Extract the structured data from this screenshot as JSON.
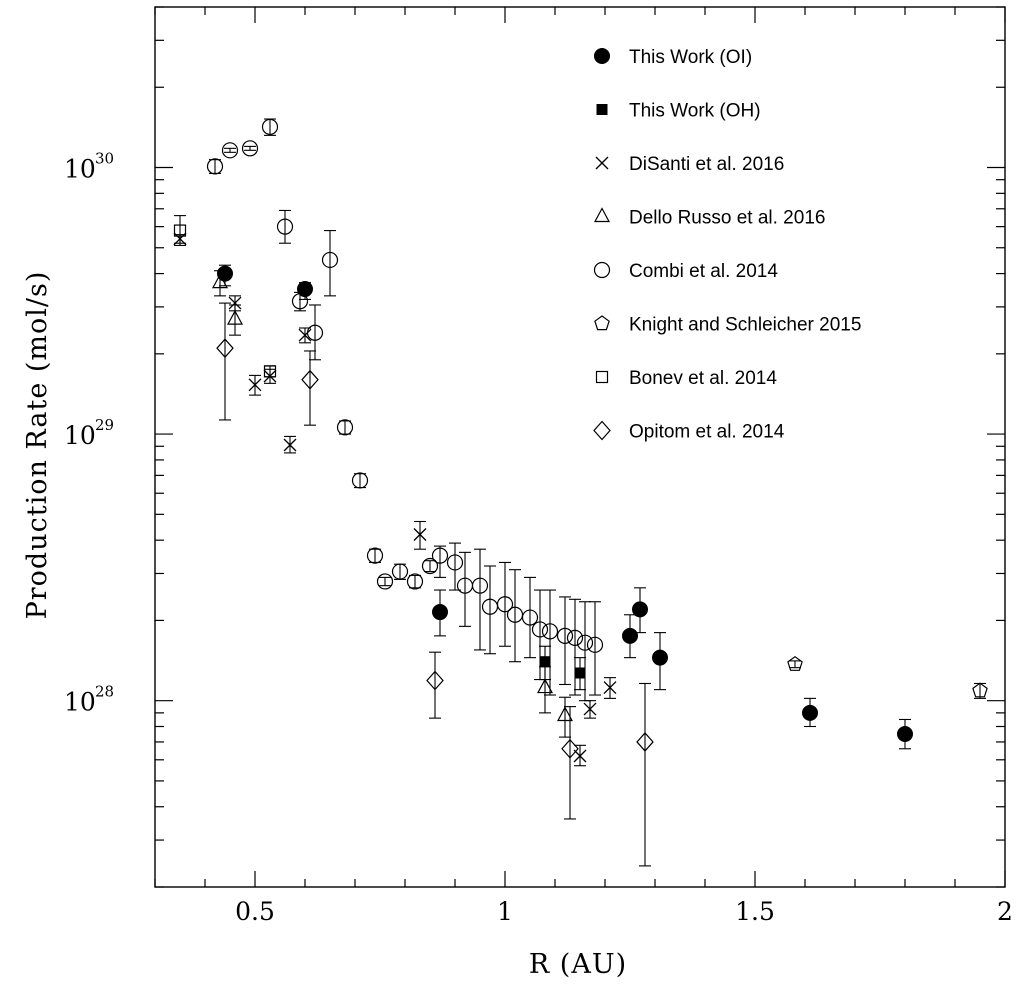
{
  "chart_data": {
    "type": "scatter",
    "title": "",
    "xlabel": "R (AU)",
    "ylabel": "Production Rate (mol/s)",
    "xlim": [
      0.3,
      2.0
    ],
    "ylim": [
      2e+27,
      4e+30
    ],
    "yscale": "log",
    "x_ticks": [
      {
        "value": 0.5,
        "label": "0.5"
      },
      {
        "value": 1.0,
        "label": "1"
      },
      {
        "value": 1.5,
        "label": "1.5"
      },
      {
        "value": 2.0,
        "label": "2"
      }
    ],
    "y_ticks": [
      {
        "value": 1e+28,
        "mantissa": "10",
        "exponent": "28"
      },
      {
        "value": 1e+29,
        "mantissa": "10",
        "exponent": "29"
      },
      {
        "value": 1e+30,
        "mantissa": "10",
        "exponent": "30"
      }
    ],
    "legend_position": "top-right",
    "series": [
      {
        "name": "This Work (OI)",
        "marker": "filled-circle",
        "points": [
          {
            "x": 0.44,
            "y": 4e+29,
            "lo": 3.6e+29,
            "hi": 4.3e+29
          },
          {
            "x": 0.6,
            "y": 3.5e+29,
            "lo": 3.2e+29,
            "hi": 3.7e+29
          },
          {
            "x": 0.87,
            "y": 2.15e+28,
            "lo": 1.75e+28,
            "hi": 2.6e+28
          },
          {
            "x": 1.25,
            "y": 1.75e+28,
            "lo": 1.45e+28,
            "hi": 2.1e+28
          },
          {
            "x": 1.27,
            "y": 2.2e+28,
            "lo": 1.8e+28,
            "hi": 2.65e+28
          },
          {
            "x": 1.31,
            "y": 1.45e+28,
            "lo": 1.1e+28,
            "hi": 1.8e+28
          },
          {
            "x": 1.61,
            "y": 9e+27,
            "lo": 8e+27,
            "hi": 1.02e+28
          },
          {
            "x": 1.8,
            "y": 7.5e+27,
            "lo": 6.6e+27,
            "hi": 8.5e+27
          }
        ]
      },
      {
        "name": "This Work (OH)",
        "marker": "filled-square",
        "points": [
          {
            "x": 1.08,
            "y": 1.4e+28,
            "lo": 1.2e+28,
            "hi": 1.6e+28
          },
          {
            "x": 1.15,
            "y": 1.27e+28,
            "lo": 1.1e+28,
            "hi": 1.45e+28
          }
        ]
      },
      {
        "name": "DiSanti et al. 2016",
        "marker": "cross",
        "points": [
          {
            "x": 0.35,
            "y": 5.4e+29,
            "lo": 5.2e+29,
            "hi": 5.6e+29
          },
          {
            "x": 0.46,
            "y": 3.1e+29,
            "lo": 2.9e+29,
            "hi": 3.3e+29
          },
          {
            "x": 0.5,
            "y": 1.53e+29,
            "lo": 1.4e+29,
            "hi": 1.66e+29
          },
          {
            "x": 0.53,
            "y": 1.65e+29,
            "lo": 1.55e+29,
            "hi": 1.75e+29
          },
          {
            "x": 0.57,
            "y": 9.1e+28,
            "lo": 8.5e+28,
            "hi": 9.8e+28
          },
          {
            "x": 0.6,
            "y": 2.35e+29,
            "lo": 2.2e+29,
            "hi": 2.5e+29
          },
          {
            "x": 0.83,
            "y": 4.2e+28,
            "lo": 3.7e+28,
            "hi": 4.7e+28
          },
          {
            "x": 1.15,
            "y": 6.2e+27,
            "lo": 5.7e+27,
            "hi": 6.8e+27
          },
          {
            "x": 1.17,
            "y": 9.3e+27,
            "lo": 8.6e+27,
            "hi": 1e+28
          },
          {
            "x": 1.21,
            "y": 1.12e+28,
            "lo": 1.02e+28,
            "hi": 1.22e+28
          }
        ]
      },
      {
        "name": "Dello Russo et al. 2016",
        "marker": "open-triangle",
        "points": [
          {
            "x": 0.43,
            "y": 3.7e+29,
            "lo": 3.3e+29,
            "hi": 4.1e+29
          },
          {
            "x": 0.46,
            "y": 2.7e+29,
            "lo": 2.35e+29,
            "hi": 3.05e+29
          },
          {
            "x": 1.08,
            "y": 1.12e+28,
            "lo": 9e+27,
            "hi": 1.34e+28
          },
          {
            "x": 1.12,
            "y": 8.8e+27,
            "lo": 7.3e+27,
            "hi": 1.03e+28
          }
        ]
      },
      {
        "name": "Combi et al. 2014",
        "marker": "open-circle",
        "points": [
          {
            "x": 0.42,
            "y": 1.01e+30,
            "lo": 9.5e+29,
            "hi": 1.07e+30
          },
          {
            "x": 0.45,
            "y": 1.16e+30,
            "lo": 1.14e+30,
            "hi": 1.18e+30
          },
          {
            "x": 0.49,
            "y": 1.18e+30,
            "lo": 1.16e+30,
            "hi": 1.2e+30
          },
          {
            "x": 0.53,
            "y": 1.42e+30,
            "lo": 1.32e+30,
            "hi": 1.52e+30
          },
          {
            "x": 0.56,
            "y": 6e+29,
            "lo": 5.2e+29,
            "hi": 6.9e+29
          },
          {
            "x": 0.59,
            "y": 3.15e+29,
            "lo": 2.9e+29,
            "hi": 3.4e+29
          },
          {
            "x": 0.62,
            "y": 2.4e+29,
            "lo": 1.9e+29,
            "hi": 3.05e+29
          },
          {
            "x": 0.65,
            "y": 4.5e+29,
            "lo": 3.3e+29,
            "hi": 5.8e+29
          },
          {
            "x": 0.68,
            "y": 1.06e+29,
            "lo": 1e+29,
            "hi": 1.12e+29
          },
          {
            "x": 0.71,
            "y": 6.7e+28,
            "lo": 6.3e+28,
            "hi": 7.1e+28
          },
          {
            "x": 0.74,
            "y": 3.5e+28,
            "lo": 3.3e+28,
            "hi": 3.7e+28
          },
          {
            "x": 0.76,
            "y": 2.8e+28,
            "lo": 2.7e+28,
            "hi": 2.9e+28
          },
          {
            "x": 0.79,
            "y": 3.05e+28,
            "lo": 2.85e+28,
            "hi": 3.25e+28
          },
          {
            "x": 0.82,
            "y": 2.8e+28,
            "lo": 2.65e+28,
            "hi": 2.95e+28
          },
          {
            "x": 0.85,
            "y": 3.2e+28,
            "lo": 3.05e+28,
            "hi": 3.35e+28
          },
          {
            "x": 0.87,
            "y": 3.5e+28,
            "lo": 2.9e+28,
            "hi": 3.8e+28
          },
          {
            "x": 0.9,
            "y": 3.3e+28,
            "lo": 2.6e+28,
            "hi": 3.9e+28
          },
          {
            "x": 0.92,
            "y": 2.7e+28,
            "lo": 1.9e+28,
            "hi": 3.6e+28
          },
          {
            "x": 0.95,
            "y": 2.7e+28,
            "lo": 1.55e+28,
            "hi": 3.7e+28
          },
          {
            "x": 0.97,
            "y": 2.25e+28,
            "lo": 1.5e+28,
            "hi": 3.2e+28
          },
          {
            "x": 1.0,
            "y": 2.3e+28,
            "lo": 1.6e+28,
            "hi": 3.3e+28
          },
          {
            "x": 1.02,
            "y": 2.1e+28,
            "lo": 1.4e+28,
            "hi": 3.1e+28
          },
          {
            "x": 1.05,
            "y": 2.05e+28,
            "lo": 1.45e+28,
            "hi": 2.9e+28
          },
          {
            "x": 1.07,
            "y": 1.85e+28,
            "lo": 1.2e+28,
            "hi": 2.6e+28
          },
          {
            "x": 1.09,
            "y": 1.82e+28,
            "lo": 1.05e+28,
            "hi": 2.6e+28
          },
          {
            "x": 1.12,
            "y": 1.75e+28,
            "lo": 1.15e+28,
            "hi": 2.45e+28
          },
          {
            "x": 1.14,
            "y": 1.72e+28,
            "lo": 1.05e+28,
            "hi": 2.4e+28
          },
          {
            "x": 1.16,
            "y": 1.65e+28,
            "lo": 1e+28,
            "hi": 2.35e+28
          },
          {
            "x": 1.18,
            "y": 1.62e+28,
            "lo": 1.05e+28,
            "hi": 2.35e+28
          }
        ]
      },
      {
        "name": "Knight and Schleicher 2015",
        "marker": "open-pentagon",
        "points": [
          {
            "x": 1.58,
            "y": 1.37e+28,
            "lo": 1.33e+28,
            "hi": 1.41e+28
          },
          {
            "x": 1.95,
            "y": 1.09e+28,
            "lo": 1.02e+28,
            "hi": 1.16e+28
          }
        ]
      },
      {
        "name": "Bonev et al. 2014",
        "marker": "open-square",
        "points": [
          {
            "x": 0.35,
            "y": 5.8e+29,
            "lo": 5.1e+29,
            "hi": 6.6e+29
          },
          {
            "x": 0.53,
            "y": 1.72e+29,
            "lo": 1.64e+29,
            "hi": 1.8e+29
          }
        ]
      },
      {
        "name": "Opitom et al. 2014",
        "marker": "open-diamond",
        "points": [
          {
            "x": 0.44,
            "y": 2.1e+29,
            "lo": 1.13e+29,
            "hi": 3.1e+29
          },
          {
            "x": 0.61,
            "y": 1.6e+29,
            "lo": 1.08e+29,
            "hi": 2.05e+29
          },
          {
            "x": 0.86,
            "y": 1.19e+28,
            "lo": 8.6e+27,
            "hi": 1.52e+28
          },
          {
            "x": 1.13,
            "y": 6.6e+27,
            "lo": 3.6e+27,
            "hi": 9.5e+27
          },
          {
            "x": 1.28,
            "y": 7e+27,
            "lo": 2.4e+27,
            "hi": 1.16e+28
          }
        ]
      }
    ]
  }
}
